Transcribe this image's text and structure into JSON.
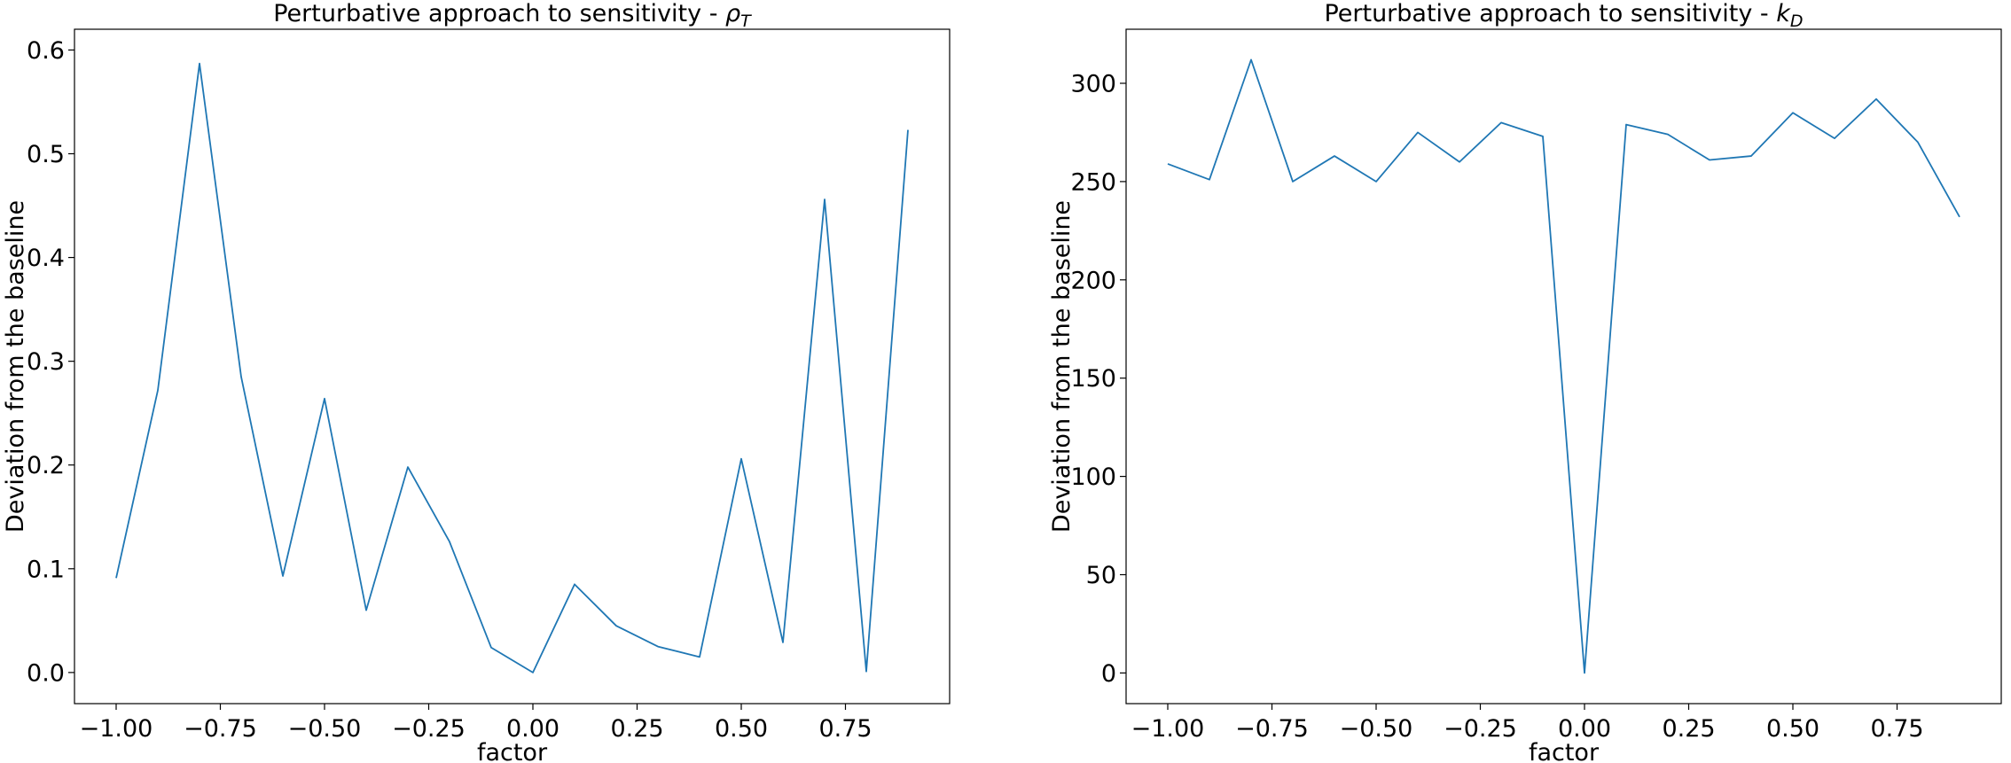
{
  "chart_data": [
    {
      "type": "line",
      "title": "Perturbative approach to sensitivity - ",
      "title_symbol": "ρ",
      "title_subscript": "T",
      "xlabel": "factor",
      "ylabel": "Deviation from the baseline",
      "xlim": [
        -1.1,
        1.0
      ],
      "ylim": [
        -0.03,
        0.62
      ],
      "xticks": [
        -1.0,
        -0.75,
        -0.5,
        -0.25,
        0.0,
        0.25,
        0.5,
        0.75
      ],
      "xtick_labels": [
        "−1.00",
        "−0.75",
        "−0.50",
        "−0.25",
        "0.00",
        "0.25",
        "0.50",
        "0.75"
      ],
      "yticks": [
        0.0,
        0.1,
        0.2,
        0.3,
        0.4,
        0.5,
        0.6
      ],
      "ytick_labels": [
        "0.0",
        "0.1",
        "0.2",
        "0.3",
        "0.4",
        "0.5",
        "0.6"
      ],
      "grid": false,
      "line_color": "#1f77b4",
      "x": [
        -1.0,
        -0.9,
        -0.8,
        -0.7,
        -0.6,
        -0.5,
        -0.4,
        -0.3,
        -0.2,
        -0.1,
        0.0,
        0.1,
        0.2,
        0.3,
        0.4,
        0.5,
        0.6,
        0.7,
        0.8,
        0.9
      ],
      "y": [
        0.091,
        0.272,
        0.587,
        0.285,
        0.093,
        0.264,
        0.06,
        0.198,
        0.126,
        0.024,
        0.0,
        0.085,
        0.045,
        0.025,
        0.015,
        0.206,
        0.029,
        0.456,
        0.001,
        0.523
      ]
    },
    {
      "type": "line",
      "title": "Perturbative approach to sensitivity - ",
      "title_symbol": "k",
      "title_subscript": "D",
      "xlabel": "factor",
      "ylabel": "Deviation from the baseline",
      "xlim": [
        -1.1,
        1.0
      ],
      "ylim": [
        -15.6,
        327.5
      ],
      "xticks": [
        -1.0,
        -0.75,
        -0.5,
        -0.25,
        0.0,
        0.25,
        0.5,
        0.75
      ],
      "xtick_labels": [
        "−1.00",
        "−0.75",
        "−0.50",
        "−0.25",
        "0.00",
        "0.25",
        "0.50",
        "0.75"
      ],
      "yticks": [
        0,
        50,
        100,
        150,
        200,
        250,
        300
      ],
      "ytick_labels": [
        "0",
        "50",
        "100",
        "150",
        "200",
        "250",
        "300"
      ],
      "grid": false,
      "line_color": "#1f77b4",
      "x": [
        -1.0,
        -0.9,
        -0.8,
        -0.7,
        -0.6,
        -0.5,
        -0.4,
        -0.3,
        -0.2,
        -0.1,
        0.0,
        0.1,
        0.2,
        0.3,
        0.4,
        0.5,
        0.6,
        0.7,
        0.8,
        0.9
      ],
      "y": [
        259,
        251,
        312,
        250,
        263,
        250,
        275,
        260,
        280,
        273,
        0,
        279,
        274,
        261,
        263,
        285,
        272,
        292,
        270,
        232
      ]
    }
  ]
}
